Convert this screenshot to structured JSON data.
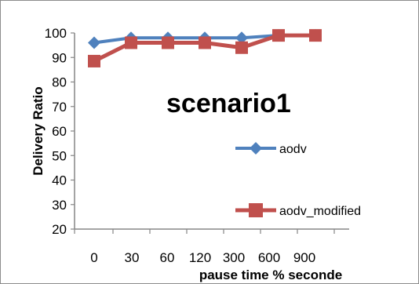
{
  "chart_data": {
    "type": "line",
    "title": "scenario1",
    "xlabel": "pause time % seconde",
    "ylabel": "Delivery Ratio",
    "categories": [
      "0",
      "30",
      "60",
      "120",
      "300",
      "600",
      "900"
    ],
    "ylim": [
      20,
      100
    ],
    "yticks": [
      20,
      30,
      40,
      50,
      60,
      70,
      80,
      90,
      100
    ],
    "grid": false,
    "legend_position": "right",
    "series": [
      {
        "name": "aodv",
        "values": [
          96,
          98,
          98,
          98,
          98,
          99,
          99
        ],
        "color": "#4f81bd",
        "marker": "diamond"
      },
      {
        "name": "aodv_modified",
        "values": [
          88.5,
          96,
          96,
          96,
          94,
          99,
          99
        ],
        "color": "#c0504d",
        "marker": "square"
      }
    ]
  }
}
